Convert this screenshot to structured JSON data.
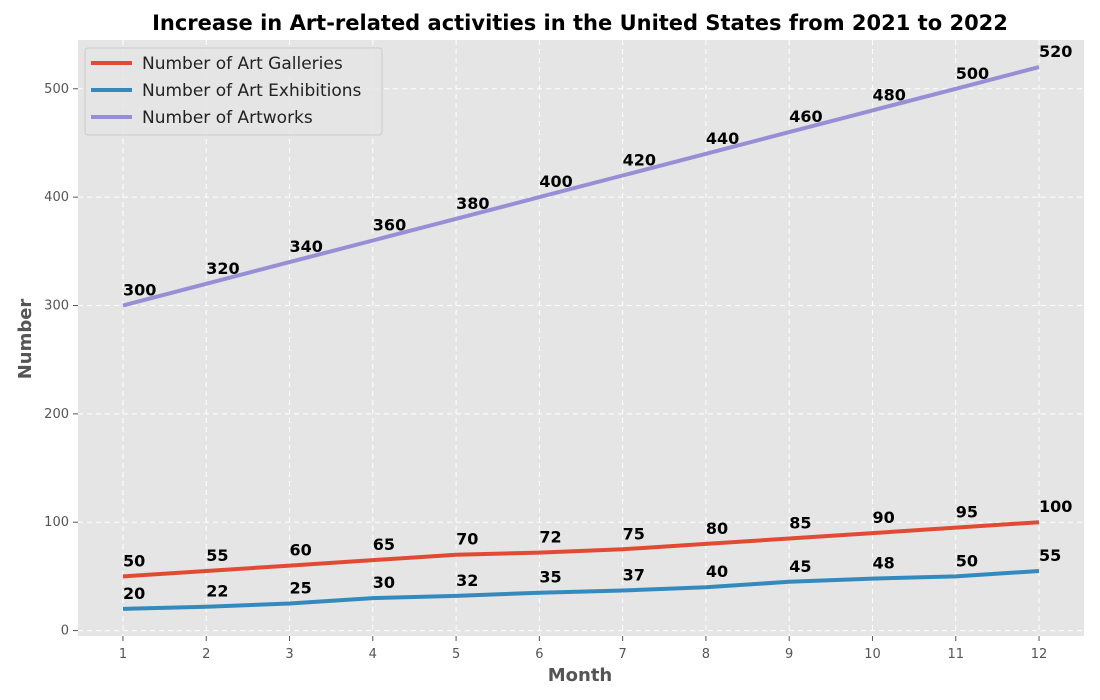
{
  "chart_data": {
    "type": "line",
    "title": "Increase in Art-related activities in the United States from 2021 to 2022",
    "xlabel": "Month",
    "ylabel": "Number",
    "x": [
      1,
      2,
      3,
      4,
      5,
      6,
      7,
      8,
      9,
      10,
      11,
      12
    ],
    "xlim": [
      0.46,
      12.54
    ],
    "ylim": [
      -5,
      545
    ],
    "yticks": [
      0,
      100,
      200,
      300,
      400,
      500
    ],
    "grid": true,
    "legend_position": "top-left",
    "series": [
      {
        "name": "Number of Art Galleries",
        "color": "#E24A33",
        "values": [
          50,
          55,
          60,
          65,
          70,
          72,
          75,
          80,
          85,
          90,
          95,
          100
        ]
      },
      {
        "name": "Number of Art Exhibitions",
        "color": "#348ABD",
        "values": [
          20,
          22,
          25,
          30,
          32,
          35,
          37,
          40,
          45,
          48,
          50,
          55
        ]
      },
      {
        "name": "Number of Artworks",
        "color": "#988ED5",
        "values": [
          300,
          320,
          340,
          360,
          380,
          400,
          420,
          440,
          460,
          480,
          500,
          520
        ]
      }
    ],
    "plot_background": "#E5E5E5"
  }
}
